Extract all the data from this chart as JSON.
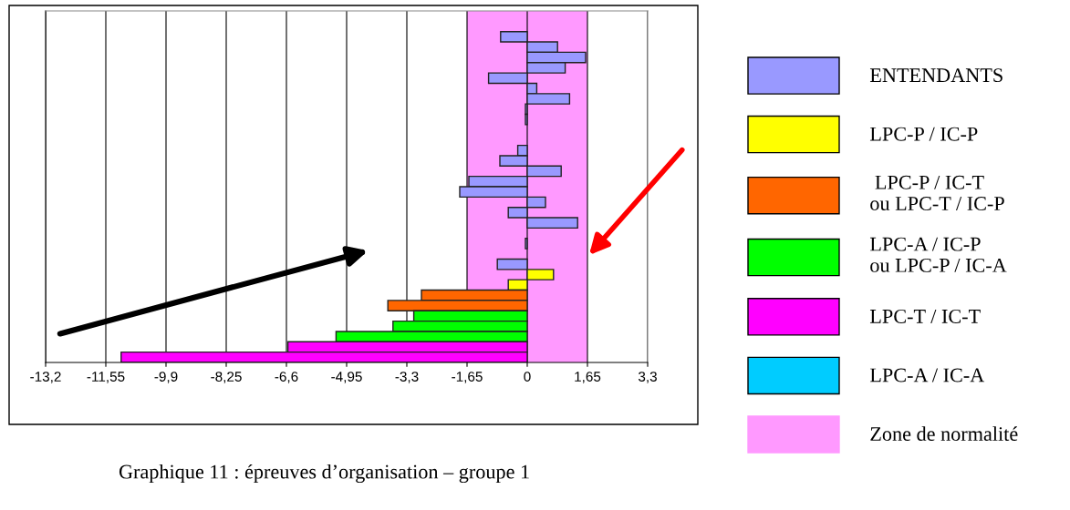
{
  "chart_data": {
    "type": "bar",
    "orientation": "horizontal",
    "title": "Graphique 11 : épreuves d’organisation – groupe 1",
    "categories": [
      null,
      null,
      null,
      null,
      null,
      null,
      null,
      null,
      null,
      null,
      null,
      null,
      null,
      null,
      null,
      null,
      null,
      null,
      null,
      null,
      null,
      null,
      null,
      null,
      null,
      null,
      null,
      null,
      null,
      null,
      null,
      null,
      null,
      null
    ],
    "series": [
      {
        "name": "ENTENDANTS",
        "color": "#9999ff",
        "values": [
          null,
          null,
          -0.73,
          0.83,
          1.6,
          1.04,
          -1.06,
          0.26,
          1.16,
          -0.05,
          -0.05,
          null,
          null,
          -0.26,
          -0.75,
          0.93,
          -1.6,
          -1.85,
          0.5,
          -0.52,
          1.38,
          null,
          -0.05,
          null,
          -0.82,
          null,
          null,
          null,
          null,
          null,
          null,
          null,
          null,
          null
        ]
      },
      {
        "name": "LPC-P / IC-P",
        "color": "#ffff00",
        "values": [
          null,
          null,
          null,
          null,
          null,
          null,
          null,
          null,
          null,
          null,
          null,
          null,
          null,
          null,
          null,
          null,
          null,
          null,
          null,
          null,
          null,
          null,
          null,
          null,
          null,
          0.72,
          -0.52,
          null,
          null,
          null,
          null,
          null,
          null,
          null
        ]
      },
      {
        "name": " LPC-P / IC-T\nou LPC-T / IC-P",
        "color": "#ff6600",
        "values": [
          null,
          null,
          null,
          null,
          null,
          null,
          null,
          null,
          null,
          null,
          null,
          null,
          null,
          null,
          null,
          null,
          null,
          null,
          null,
          null,
          null,
          null,
          null,
          null,
          null,
          null,
          null,
          -2.9,
          -3.82,
          null,
          null,
          null,
          null,
          null
        ]
      },
      {
        "name": "LPC-A / IC-P\nou LPC-P / IC-A",
        "color": "#00ff00",
        "values": [
          null,
          null,
          null,
          null,
          null,
          null,
          null,
          null,
          null,
          null,
          null,
          null,
          null,
          null,
          null,
          null,
          null,
          null,
          null,
          null,
          null,
          null,
          null,
          null,
          null,
          null,
          null,
          null,
          null,
          -3.11,
          -3.68,
          -5.24,
          null,
          null
        ]
      },
      {
        "name": "LPC-T / IC-T",
        "color": "#ff00ff",
        "values": [
          null,
          null,
          null,
          null,
          null,
          null,
          null,
          null,
          null,
          null,
          null,
          null,
          null,
          null,
          null,
          null,
          null,
          null,
          null,
          null,
          null,
          null,
          null,
          null,
          null,
          null,
          null,
          null,
          null,
          null,
          null,
          null,
          -6.56,
          -11.13
        ]
      },
      {
        "name": "LPC-A / IC-A",
        "color": "#00ccff",
        "values": [
          null,
          null,
          null,
          null,
          null,
          null,
          null,
          null,
          null,
          null,
          null,
          null,
          null,
          null,
          null,
          null,
          null,
          null,
          null,
          null,
          null,
          null,
          null,
          null,
          null,
          null,
          null,
          null,
          null,
          null,
          null,
          null,
          null,
          null
        ]
      }
    ],
    "bands": [
      {
        "axis": "x",
        "from": -1.65,
        "to": 1.65,
        "label": "Zone de normalité",
        "color": "#ff99ff"
      }
    ],
    "xlim": [
      -13.2,
      3.3
    ],
    "xticks": [
      {
        "value": -13.2,
        "label": "-13,2"
      },
      {
        "value": -11.55,
        "label": "-11,55"
      },
      {
        "value": -9.9,
        "label": "-9,9"
      },
      {
        "value": -8.25,
        "label": "-8,25"
      },
      {
        "value": -6.6,
        "label": "-6,6"
      },
      {
        "value": -4.95,
        "label": "-4,95"
      },
      {
        "value": -3.3,
        "label": "-3,3"
      },
      {
        "value": -1.65,
        "label": "-1,65"
      },
      0,
      {
        "value": 1.65,
        "label": "1,65"
      },
      {
        "value": 3.3,
        "label": "3,3"
      }
    ],
    "grid": "x",
    "legend": "right",
    "tick_labels": "x"
  }
}
